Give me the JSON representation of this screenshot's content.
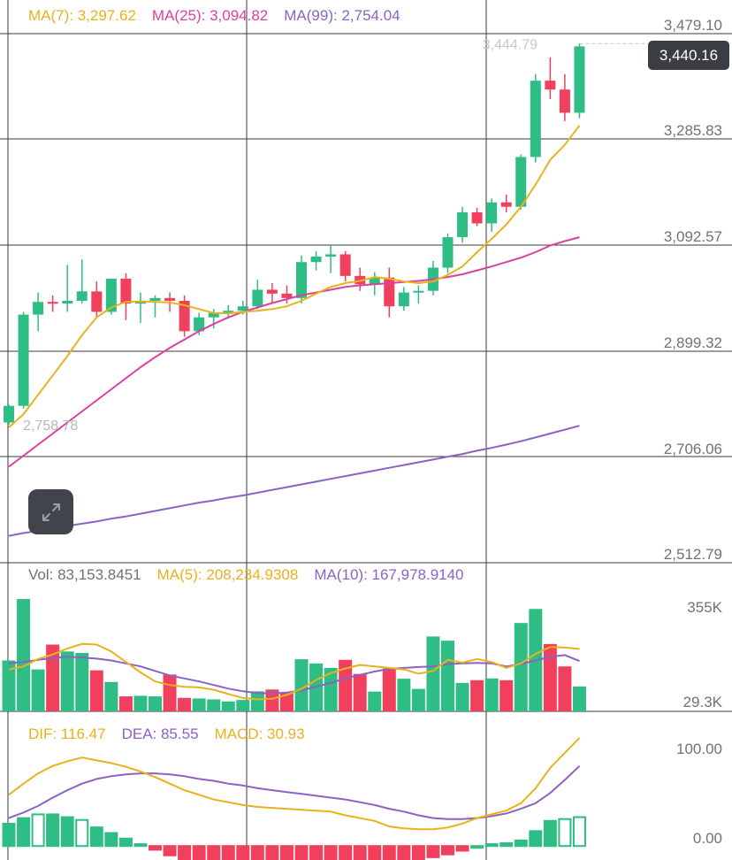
{
  "legend_price": {
    "ma7": "MA(7): 3,297.62",
    "ma25": "MA(25): 3,094.82",
    "ma99": "MA(99): 2,754.04"
  },
  "legend_volume": {
    "vol": "Vol: 83,153.8451",
    "ma5": "MA(5): 208,234.9308",
    "ma10": "MA(10): 167,978.9140"
  },
  "legend_macd": {
    "dif": "DIF: 116.47",
    "dea": "DEA: 85.55",
    "macd": "MACD: 30.93"
  },
  "current_price_label": "3,440.16",
  "high_marker_label": "3,444.79",
  "low_marker_label": "2,758.78",
  "colors": {
    "up": "#2ebd85",
    "down": "#f0405e",
    "ma7": "#e8b21c",
    "ma25": "#dc3fa3",
    "ma99": "#8b63c3",
    "grid": "#3a3a3a",
    "axis_text": "#6f7277"
  },
  "icons": {
    "expand": "expand-arrows-icon"
  },
  "chart_data": {
    "type": "candlestick",
    "price_axis_ticks": [
      "3,479.10",
      "3,285.83",
      "3,092.57",
      "2,899.32",
      "2,706.06",
      "2,512.79"
    ],
    "price_ylim": [
      2512.79,
      3479.1
    ],
    "candles": [
      {
        "o": 2760,
        "h": 2792,
        "l": 2756,
        "c": 2790
      },
      {
        "o": 2790,
        "h": 2960,
        "l": 2785,
        "c": 2955
      },
      {
        "o": 2955,
        "h": 2995,
        "l": 2925,
        "c": 2978
      },
      {
        "o": 2978,
        "h": 2990,
        "l": 2960,
        "c": 2975
      },
      {
        "o": 2975,
        "h": 3045,
        "l": 2960,
        "c": 2980
      },
      {
        "o": 2980,
        "h": 3055,
        "l": 2975,
        "c": 2997
      },
      {
        "o": 2997,
        "h": 3015,
        "l": 2950,
        "c": 2960
      },
      {
        "o": 2960,
        "h": 3020,
        "l": 2955,
        "c": 3020
      },
      {
        "o": 3020,
        "h": 3030,
        "l": 2945,
        "c": 2975
      },
      {
        "o": 2975,
        "h": 2995,
        "l": 2940,
        "c": 2980
      },
      {
        "o": 2980,
        "h": 2990,
        "l": 2950,
        "c": 2985
      },
      {
        "o": 2985,
        "h": 2995,
        "l": 2960,
        "c": 2980
      },
      {
        "o": 2980,
        "h": 2990,
        "l": 2915,
        "c": 2925
      },
      {
        "o": 2925,
        "h": 2958,
        "l": 2918,
        "c": 2950
      },
      {
        "o": 2950,
        "h": 2965,
        "l": 2930,
        "c": 2958
      },
      {
        "o": 2958,
        "h": 2972,
        "l": 2948,
        "c": 2962
      },
      {
        "o": 2962,
        "h": 2980,
        "l": 2955,
        "c": 2970
      },
      {
        "o": 2970,
        "h": 3018,
        "l": 2965,
        "c": 3000
      },
      {
        "o": 3000,
        "h": 3012,
        "l": 2975,
        "c": 2993
      },
      {
        "o": 2993,
        "h": 3008,
        "l": 2975,
        "c": 2985
      },
      {
        "o": 2985,
        "h": 3062,
        "l": 2975,
        "c": 3050
      },
      {
        "o": 3050,
        "h": 3070,
        "l": 3035,
        "c": 3060
      },
      {
        "o": 3060,
        "h": 3082,
        "l": 3030,
        "c": 3064
      },
      {
        "o": 3064,
        "h": 3070,
        "l": 3015,
        "c": 3025
      },
      {
        "o": 3025,
        "h": 3040,
        "l": 2998,
        "c": 3010
      },
      {
        "o": 3010,
        "h": 3032,
        "l": 2990,
        "c": 3022
      },
      {
        "o": 3022,
        "h": 3040,
        "l": 2950,
        "c": 2970
      },
      {
        "o": 2970,
        "h": 3005,
        "l": 2962,
        "c": 2995
      },
      {
        "o": 2995,
        "h": 3008,
        "l": 2975,
        "c": 2998
      },
      {
        "o": 2998,
        "h": 3052,
        "l": 2990,
        "c": 3040
      },
      {
        "o": 3040,
        "h": 3102,
        "l": 3030,
        "c": 3095
      },
      {
        "o": 3095,
        "h": 3150,
        "l": 3085,
        "c": 3140
      },
      {
        "o": 3140,
        "h": 3148,
        "l": 3115,
        "c": 3120
      },
      {
        "o": 3120,
        "h": 3165,
        "l": 3105,
        "c": 3158
      },
      {
        "o": 3158,
        "h": 3172,
        "l": 3140,
        "c": 3150
      },
      {
        "o": 3150,
        "h": 3245,
        "l": 3145,
        "c": 3240
      },
      {
        "o": 3240,
        "h": 3390,
        "l": 3230,
        "c": 3378
      },
      {
        "o": 3378,
        "h": 3420,
        "l": 3345,
        "c": 3362
      },
      {
        "o": 3362,
        "h": 3390,
        "l": 3305,
        "c": 3320
      },
      {
        "o": 3320,
        "h": 3445,
        "l": 3310,
        "c": 3440
      }
    ],
    "ma7": [
      2751,
      2775,
      2810,
      2845,
      2880,
      2918,
      2950,
      2968,
      2978,
      2979,
      2978,
      2977,
      2972,
      2965,
      2958,
      2957,
      2960,
      2962,
      2965,
      2970,
      2980,
      2993,
      3005,
      3012,
      3016,
      3023,
      3020,
      3015,
      3012,
      3015,
      3027,
      3042,
      3068,
      3092,
      3118,
      3150,
      3190,
      3235,
      3262,
      3297
    ],
    "ma25": [
      2680,
      2700,
      2720,
      2740,
      2760,
      2780,
      2800,
      2820,
      2840,
      2860,
      2878,
      2895,
      2910,
      2925,
      2938,
      2950,
      2960,
      2968,
      2976,
      2983,
      2990,
      2995,
      3000,
      3005,
      3008,
      3010,
      3012,
      3014,
      3016,
      3019,
      3023,
      3028,
      3035,
      3042,
      3050,
      3058,
      3068,
      3080,
      3088,
      3095
    ],
    "ma99": [
      2555,
      2560,
      2564,
      2569,
      2573,
      2577,
      2581,
      2586,
      2590,
      2595,
      2600,
      2605,
      2610,
      2615,
      2619,
      2624,
      2628,
      2633,
      2638,
      2643,
      2648,
      2653,
      2658,
      2663,
      2668,
      2673,
      2678,
      2683,
      2688,
      2693,
      2698,
      2703,
      2709,
      2714,
      2720,
      2726,
      2733,
      2740,
      2747,
      2754
    ],
    "volume_axis_ticks": [
      "355K",
      "29.3K"
    ],
    "volume_ylim": [
      0,
      390000
    ],
    "volume": [
      170000,
      375000,
      140000,
      223000,
      200000,
      195000,
      137000,
      98000,
      50000,
      52000,
      50000,
      123000,
      45000,
      43000,
      40000,
      33000,
      38000,
      67000,
      73000,
      64000,
      174000,
      160000,
      145000,
      172000,
      125000,
      66000,
      143000,
      109000,
      75000,
      250000,
      236000,
      95000,
      104000,
      110000,
      104000,
      295000,
      342000,
      225000,
      150000,
      83154
    ],
    "vol_ma5": [
      140000,
      150000,
      175000,
      190000,
      210000,
      225000,
      223000,
      200000,
      165000,
      130000,
      100000,
      88000,
      82000,
      80000,
      72000,
      58000,
      45000,
      40000,
      42000,
      55000,
      75000,
      105000,
      128000,
      143000,
      155000,
      150000,
      145000,
      140000,
      126000,
      135000,
      172000,
      163000,
      175000,
      165000,
      145000,
      160000,
      192000,
      215000,
      213000,
      208234
    ],
    "vol_ma10": [
      160000,
      165000,
      172000,
      178000,
      182000,
      180000,
      176000,
      170000,
      160000,
      150000,
      135000,
      120000,
      110000,
      100000,
      88000,
      76000,
      67000,
      61000,
      60000,
      63000,
      70000,
      82000,
      95000,
      110000,
      122000,
      133000,
      142000,
      145000,
      148000,
      150000,
      158000,
      160000,
      162000,
      160000,
      150000,
      158000,
      170000,
      182000,
      188000,
      167979
    ],
    "macd_axis_ticks": [
      "100.00",
      "0.00"
    ],
    "macd_ylim": [
      -15,
      118
    ],
    "dif": [
      55,
      67,
      78,
      86,
      91,
      95,
      92,
      89,
      85,
      80,
      74,
      67,
      60,
      55,
      50,
      47,
      44,
      42,
      41,
      40,
      39,
      38,
      37,
      33,
      30,
      27,
      21,
      19,
      18,
      18,
      20,
      24,
      30,
      34,
      38,
      46,
      62,
      84,
      100,
      116
    ],
    "dea": [
      30,
      36,
      43,
      52,
      60,
      67,
      72,
      75,
      77,
      78,
      78,
      77,
      75,
      72,
      70,
      67,
      65,
      62,
      60,
      58,
      56,
      54,
      52,
      50,
      47,
      44,
      40,
      37,
      33,
      30,
      29,
      29,
      30,
      32,
      35,
      40,
      46,
      57,
      71,
      86
    ],
    "macd_hist": [
      24,
      30,
      34,
      34,
      31,
      28,
      20,
      14,
      8,
      2,
      -4,
      -10,
      -15,
      -17,
      -20,
      -20,
      -21,
      -20,
      -19,
      -18,
      -17,
      -16,
      -15,
      -17,
      -17,
      -17,
      -19,
      -18,
      -15,
      -12,
      -9,
      -5,
      0,
      2,
      3,
      6,
      16,
      27,
      29,
      31
    ]
  }
}
